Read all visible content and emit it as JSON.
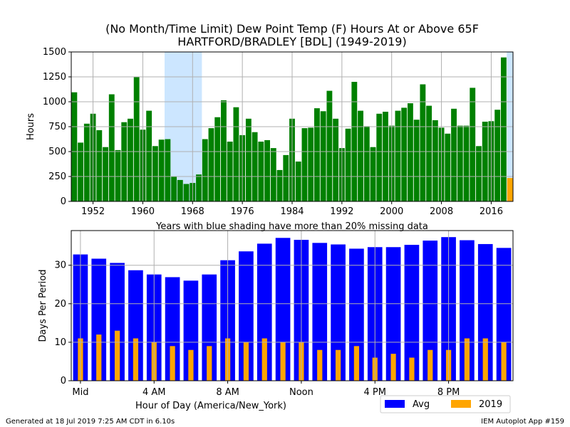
{
  "title_line1": "(No Month/Time Limit) Dew Point Temp (F) Hours At or Above 65F",
  "title_line2": "HARTFORD/BRADLEY [BDL] (1949-2019)",
  "footer_left": "Generated at 18 Jul 2019 7:25 AM CDT in 6.10s",
  "footer_right": "IEM Autoplot App #159",
  "colors": {
    "yearly_bar": "#008000",
    "current_year_bar": "#FFA500",
    "missing_shade": "#CCE6FF",
    "avg_bar": "#0000FF",
    "year2019_bar": "#FFA500",
    "grid": "#b0b0b0"
  },
  "chart_data": [
    {
      "type": "bar",
      "ylabel": "Hours",
      "xlabel": "Years with blue shading have more than 20% missing data",
      "ylim": [
        0,
        1500
      ],
      "xlim": [
        1948.5,
        2019.5
      ],
      "yticks": [
        0,
        250,
        500,
        750,
        1000,
        1250,
        1500
      ],
      "xticks": [
        1952,
        1960,
        1968,
        1976,
        1984,
        1992,
        2000,
        2008,
        2016
      ],
      "grid": true,
      "missing_data_years": [
        1964,
        1965,
        1966,
        1967,
        1968,
        1969,
        2019
      ],
      "current_year": 2019,
      "x": [
        1949,
        1950,
        1951,
        1952,
        1953,
        1954,
        1955,
        1956,
        1957,
        1958,
        1959,
        1960,
        1961,
        1962,
        1963,
        1964,
        1965,
        1966,
        1967,
        1968,
        1969,
        1970,
        1971,
        1972,
        1973,
        1974,
        1975,
        1976,
        1977,
        1978,
        1979,
        1980,
        1981,
        1982,
        1983,
        1984,
        1985,
        1986,
        1987,
        1988,
        1989,
        1990,
        1991,
        1992,
        1993,
        1994,
        1995,
        1996,
        1997,
        1998,
        1999,
        2000,
        2001,
        2002,
        2003,
        2004,
        2005,
        2006,
        2007,
        2008,
        2009,
        2010,
        2011,
        2012,
        2013,
        2014,
        2015,
        2016,
        2017,
        2018,
        2019
      ],
      "values": [
        1095,
        590,
        780,
        880,
        715,
        545,
        1075,
        515,
        795,
        830,
        1250,
        720,
        910,
        555,
        620,
        625,
        250,
        215,
        175,
        185,
        270,
        625,
        735,
        845,
        1015,
        600,
        945,
        665,
        830,
        695,
        600,
        615,
        535,
        315,
        465,
        830,
        400,
        735,
        740,
        935,
        905,
        1110,
        830,
        535,
        730,
        1200,
        910,
        755,
        545,
        880,
        900,
        760,
        910,
        940,
        985,
        820,
        1175,
        960,
        815,
        740,
        680,
        930,
        760,
        760,
        1140,
        555,
        800,
        805,
        920,
        1445,
        235
      ]
    },
    {
      "type": "bar",
      "ylabel": "Days Per Period",
      "xlabel": "Hour of Day (America/New_York)",
      "ylim": [
        0,
        39
      ],
      "yticks": [
        0,
        10,
        20,
        30
      ],
      "xtick_labels": [
        "Mid",
        "4 AM",
        "8 AM",
        "Noon",
        "4 PM",
        "8 PM"
      ],
      "xtick_hours": [
        0,
        4,
        8,
        12,
        16,
        20
      ],
      "grid": true,
      "legend_placement": "below-right",
      "categories": [
        0,
        1,
        2,
        3,
        4,
        5,
        6,
        7,
        8,
        9,
        10,
        11,
        12,
        13,
        14,
        15,
        16,
        17,
        18,
        19,
        20,
        21,
        22,
        23
      ],
      "series": [
        {
          "name": "Avg",
          "values": [
            32.8,
            31.7,
            30.6,
            28.7,
            27.6,
            26.9,
            26.0,
            27.6,
            31.3,
            33.6,
            35.6,
            37.1,
            36.6,
            35.8,
            35.4,
            34.3,
            34.7,
            34.7,
            35.3,
            36.4,
            37.3,
            36.5,
            35.5,
            34.5
          ]
        },
        {
          "name": "2019",
          "values": [
            11,
            12,
            13,
            11,
            10,
            9,
            8,
            9,
            11,
            10,
            11,
            10,
            10,
            8,
            8,
            9,
            6,
            7,
            6,
            8,
            8,
            11,
            11,
            10
          ]
        }
      ]
    }
  ]
}
